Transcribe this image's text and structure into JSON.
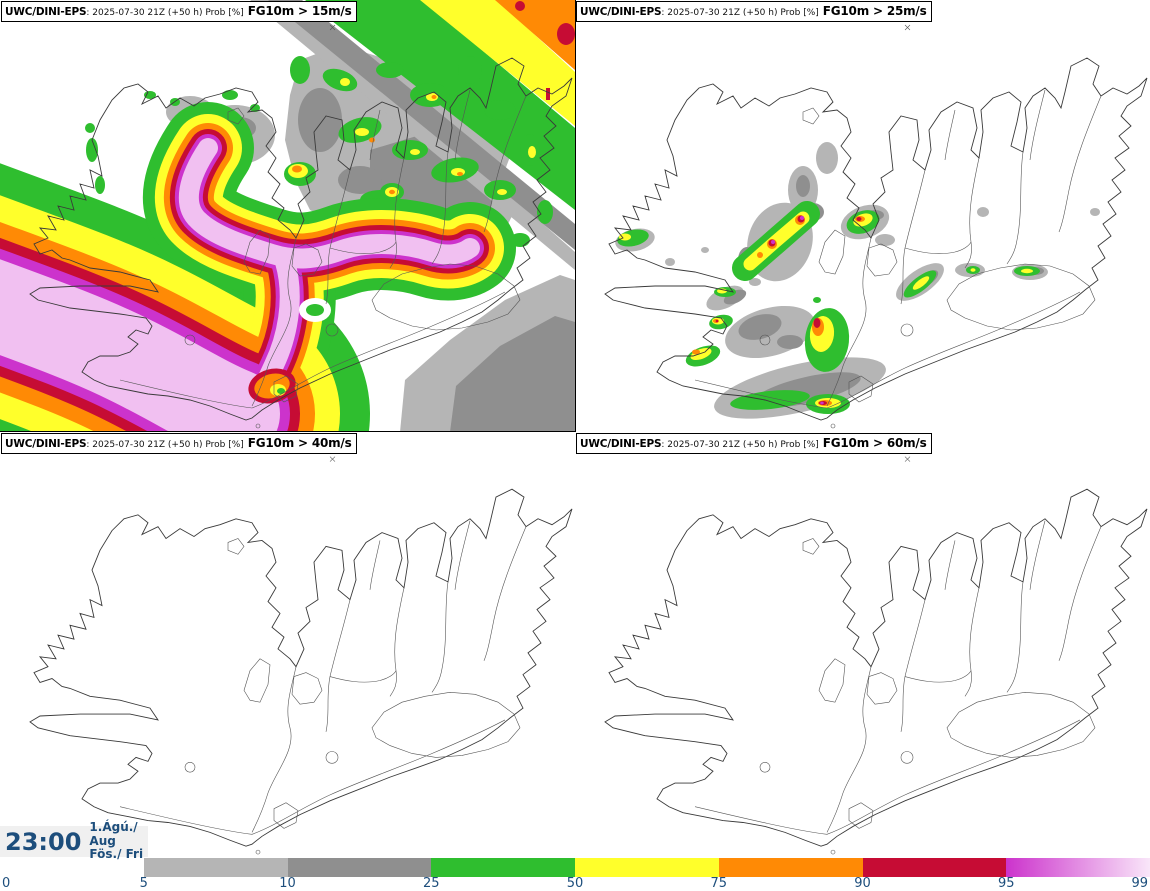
{
  "panels": [
    {
      "model": "UWC/DINI-EPS",
      "meta": ": 2025-07-30 21Z (+50 h) Prob [%]",
      "threshold": "FG10m > 15m/s"
    },
    {
      "model": "UWC/DINI-EPS",
      "meta": ": 2025-07-30 21Z (+50 h) Prob [%]",
      "threshold": "FG10m > 25m/s"
    },
    {
      "model": "UWC/DINI-EPS",
      "meta": ": 2025-07-30 21Z (+50 h) Prob [%]",
      "threshold": "FG10m > 40m/s"
    },
    {
      "model": "UWC/DINI-EPS",
      "meta": ": 2025-07-30 21Z (+50 h) Prob [%]",
      "threshold": "FG10m > 60m/s"
    }
  ],
  "clock": {
    "time": "23:00",
    "date": "1.Ágú./ Aug",
    "day": "Fös./ Fri"
  },
  "colorbar": {
    "unit": "Prob [%]",
    "labels": [
      "0",
      "5",
      "10",
      "25",
      "50",
      "75",
      "90",
      "95",
      "99"
    ],
    "segments": [
      {
        "from": "0",
        "to": "5",
        "color": "transparent"
      },
      {
        "from": "5",
        "to": "10",
        "color": "#b5b5b5"
      },
      {
        "from": "10",
        "to": "25",
        "color": "#8f8f8f"
      },
      {
        "from": "25",
        "to": "50",
        "color": "#2fbe2f"
      },
      {
        "from": "50",
        "to": "75",
        "color": "#ffff2b"
      },
      {
        "from": "75",
        "to": "90",
        "color": "#ff8a05"
      },
      {
        "from": "90",
        "to": "95",
        "color": "#c60c34"
      },
      {
        "from": "95",
        "to": "99",
        "color": "#cc33cc",
        "color_to": "#f9e6f9"
      }
    ]
  },
  "palette": {
    "green": "#2fbe2f",
    "yellow": "#ffff2b",
    "orange": "#ff8a05",
    "crimson": "#c60c34",
    "magenta": "#cc33cc",
    "pink": "#f1c0f1",
    "gray_light": "#b5b5b5",
    "gray_dark": "#8f8f8f",
    "label_blue": "#1d4e7c",
    "clock_bg": "#f0f0f0"
  }
}
